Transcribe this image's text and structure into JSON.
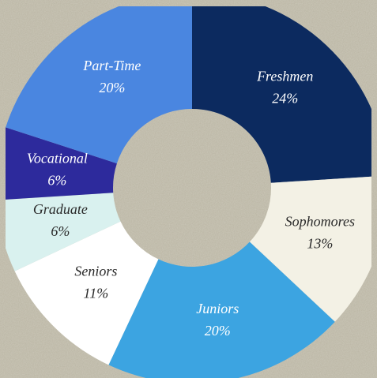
{
  "chart_data": {
    "type": "donut",
    "categories": [
      "Freshmen",
      "Sophomores",
      "Juniors",
      "Seniors",
      "Graduate",
      "Vocational",
      "Part-Time"
    ],
    "values": [
      24,
      13,
      20,
      11,
      6,
      6,
      20
    ],
    "value_labels": [
      "24%",
      "13%",
      "20%",
      "11%",
      "6%",
      "6%",
      "20%"
    ],
    "colors": [
      "#0c2a5f",
      "#f3f1e5",
      "#3ca4e1",
      "#ffffff",
      "#d9f1ef",
      "#2d2a9c",
      "#4a86e0"
    ]
  }
}
